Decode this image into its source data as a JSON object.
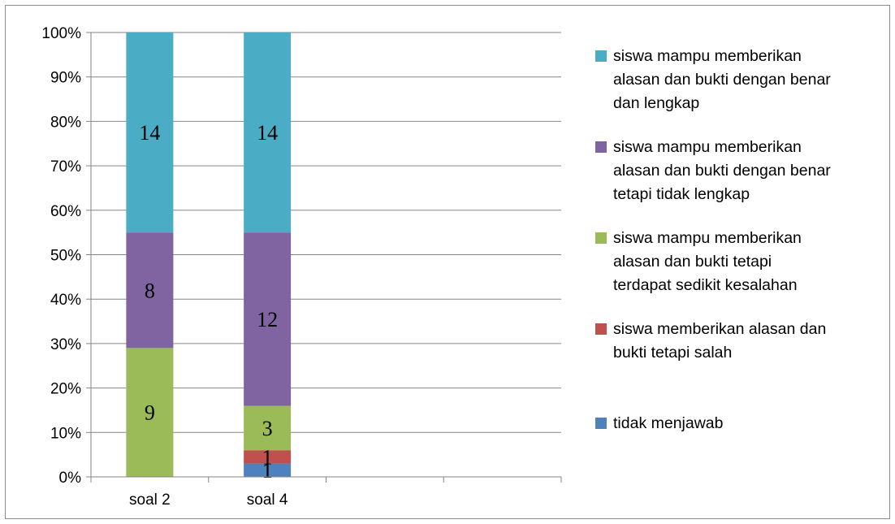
{
  "chart_data": {
    "type": "bar",
    "stacked": "percent",
    "categories": [
      "soal 2",
      "soal 4"
    ],
    "ylim": [
      0,
      100
    ],
    "yticks": [
      "0%",
      "10%",
      "20%",
      "30%",
      "40%",
      "50%",
      "60%",
      "70%",
      "80%",
      "90%",
      "100%"
    ],
    "extra_empty_categories": 2,
    "grid": true,
    "legend_position": "right",
    "series": [
      {
        "name": "tidak menjawab",
        "color": "#4f81bd",
        "values": [
          0,
          1
        ]
      },
      {
        "name": "siswa memberikan alasan dan bukti tetapi salah",
        "color": "#c0504d",
        "values": [
          0,
          1
        ]
      },
      {
        "name": "siswa mampu memberikan alasan dan bukti tetapi terdapat sedikit kesalahan",
        "color": "#9bbb59",
        "values": [
          9,
          3
        ]
      },
      {
        "name": "siswa mampu memberikan alasan dan bukti dengan benar tetapi tidak lengkap",
        "color": "#8064a2",
        "values": [
          8,
          12
        ]
      },
      {
        "name": "siswa mampu memberikan alasan dan bukti dengan benar dan lengkap",
        "color": "#4bacc6",
        "values": [
          14,
          14
        ]
      }
    ],
    "percent_values": {
      "soal 2": [
        0,
        0,
        29,
        26,
        45
      ],
      "soal 4": [
        3,
        3,
        10,
        39,
        45
      ]
    }
  },
  "legend_lines": [
    [
      "siswa mampu memberikan",
      "alasan dan bukti dengan benar",
      "dan lengkap"
    ],
    [
      "siswa mampu memberikan",
      "alasan dan bukti dengan benar",
      "tetapi tidak lengkap"
    ],
    [
      "siswa mampu memberikan",
      "alasan dan bukti tetapi",
      "terdapat sedikit kesalahan"
    ],
    [
      "siswa memberikan alasan dan",
      "bukti tetapi salah"
    ],
    [
      "tidak menjawab"
    ]
  ]
}
